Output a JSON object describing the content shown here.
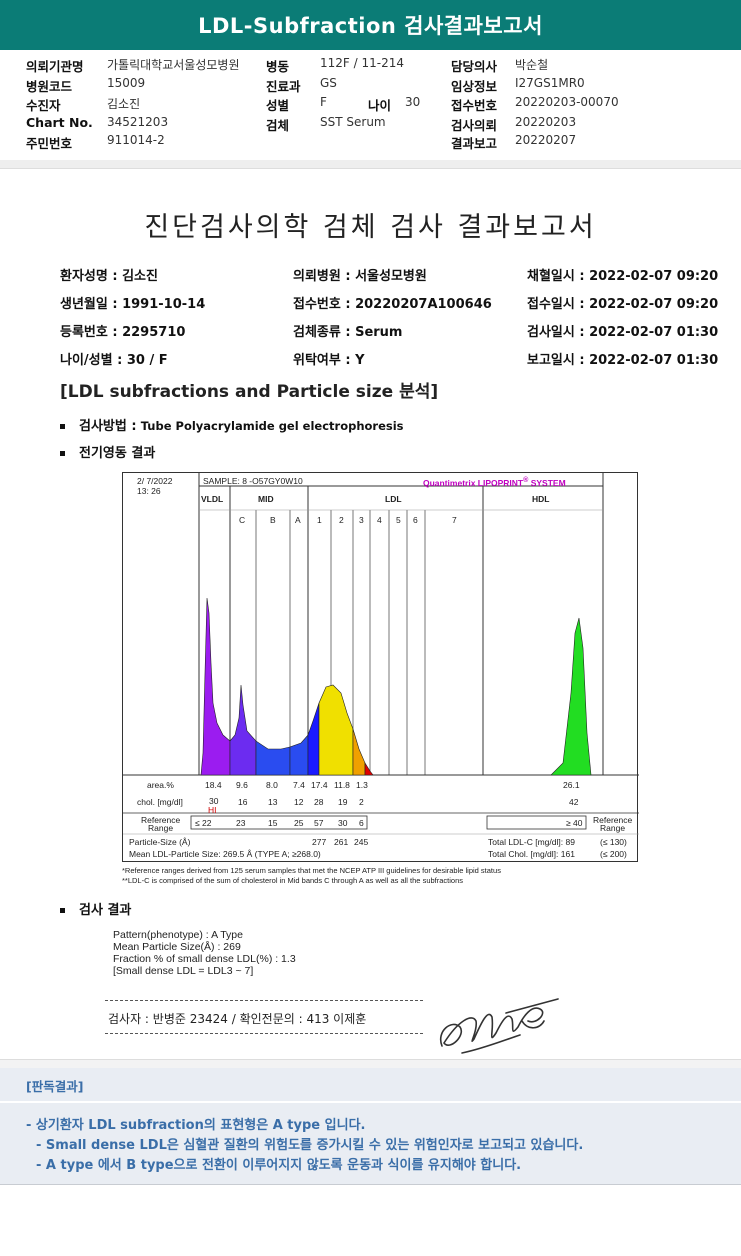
{
  "title": "LDL-Subfraction 검사결과보고서",
  "header": {
    "col1": [
      {
        "label": "의뢰기관명",
        "value": "가톨릭대학교서울성모병원"
      },
      {
        "label": "병원코드",
        "value": "15009"
      },
      {
        "label": "수진자",
        "value": "김소진"
      },
      {
        "label": "Chart No.",
        "value": "34521203"
      },
      {
        "label": "주민번호",
        "value": "911014-2"
      }
    ],
    "col2": [
      {
        "label": "병동",
        "value": "112F / 11-214"
      },
      {
        "label": "진료과",
        "value": "GS"
      },
      {
        "label": "성별",
        "value": "F"
      },
      {
        "label": "검체",
        "value": "SST Serum"
      }
    ],
    "age_label": "나이",
    "age_value": "30",
    "col3": [
      {
        "label": "담당의사",
        "value": "박순철"
      },
      {
        "label": "임상정보",
        "value": "I27GS1MR0"
      },
      {
        "label": "접수번호",
        "value": "20220203-00070"
      },
      {
        "label": "검사의뢰",
        "value": "20220203"
      },
      {
        "label": "결과보고",
        "value": "20220207"
      }
    ]
  },
  "report": {
    "title": "진단검사의학 검체 검사 결과보고서",
    "patient_info": [
      [
        "환자성명 : 김소진",
        "의뢰병원 : 서울성모병원",
        "채혈일시 : 2022-02-07 09:20"
      ],
      [
        "생년월일 : 1991-10-14",
        "접수번호 : 20220207A100646",
        "접수일시 : 2022-02-07 09:20"
      ],
      [
        "등록번호 : 2295710",
        "검체종류 : Serum",
        "검사일시 : 2022-02-07 01:30"
      ],
      [
        "나이/성별 : 30 / F",
        "위탁여부 : Y",
        "보고일시 : 2022-02-07 01:30"
      ]
    ],
    "section_heading": "[LDL subfractions and Particle size 분석]",
    "method_label": "검사방법 :",
    "method_value": "Tube Polyacrylamide gel electrophoresis",
    "electro_label": "전기영동 결과",
    "result_label": "검사 결과",
    "results": [
      "Pattern(phenotype) : A Type",
      "Mean Particle Size(Å) : 269",
      "Fraction % of small dense LDL(%) : 1.3",
      "[Small dense LDL = LDL3 ~ 7]"
    ],
    "sign_text": "검사자 : 반병준 23424 / 확인전문의 : 413 이제훈"
  },
  "chart_data": {
    "type": "area",
    "header_left": "2/ 7/2022",
    "header_time": "13: 26",
    "sample": "SAMPLE:   8 -O57GY0W10",
    "brand": "Quantimetrix LIPOPRINT",
    "brand_sup": "®",
    "brand_suffix": "SYSTEM",
    "zones": [
      "VLDL",
      "MID",
      "LDL",
      "HDL"
    ],
    "bands": [
      "C",
      "B",
      "A",
      "1",
      "2",
      "3",
      "4",
      "5",
      "6",
      "7"
    ],
    "area_label": "area.%",
    "area_values": [
      "18.4",
      "9.6",
      "8.0",
      "7.4",
      "17.4",
      "11.8",
      "1.3"
    ],
    "hdl_area": "26.1",
    "chol_label": "chol. [mg/dl]",
    "chol_values": [
      "30",
      "16",
      "13",
      "12",
      "28",
      "19",
      "2"
    ],
    "hdl_chol": "42",
    "hi_flag": "HI",
    "ref_label_1": "Reference",
    "ref_label_2": "Range",
    "ref_values": [
      "≤ 22",
      "23",
      "15",
      "25",
      "57",
      "30",
      "6"
    ],
    "hdl_ref": "≥ 40",
    "particle_label": "Particle-Size (Å)",
    "particle_values": [
      "277",
      "261",
      "245"
    ],
    "mean_label": "Mean LDL-Particle Size:   269.5 Å   (TYPE A; ≥268.0)",
    "total_ldl": "Total LDL-C [mg/dl]:  89",
    "total_ldl_ref": "(≤ 130)",
    "total_chol": "Total Chol. [mg/dl]:  161",
    "total_chol_ref": "(≤ 200)",
    "note1": "*Reference ranges derived from 125 serum samples that met the NCEP ATP III guidelines for desirable lipid status",
    "note2": "**LDL-C is comprised of the sum of cholesterol in Mid bands C through A as well as all the subfractions",
    "colors": {
      "vldl": "#9b1cf0",
      "mid": "#6c2cf0",
      "midA": "#2a4cf0",
      "band1": "#1a1aff",
      "band2": "#f0e000",
      "band3": "#f0a000",
      "band4": "#e00000",
      "hdl": "#22dd22"
    }
  },
  "opinion": {
    "title": "[판독결과]",
    "lines": [
      "- 상기환자 LDL subfraction의 표현형은 A type 입니다.",
      "-  Small dense LDL은 심혈관 질환의 위험도를 증가시킬 수 있는 위험인자로 보고되고 있습니다.",
      "-  A type 에서 B type으로 전환이 이루어지지 않도록 운동과 식이를 유지해야 합니다."
    ]
  }
}
